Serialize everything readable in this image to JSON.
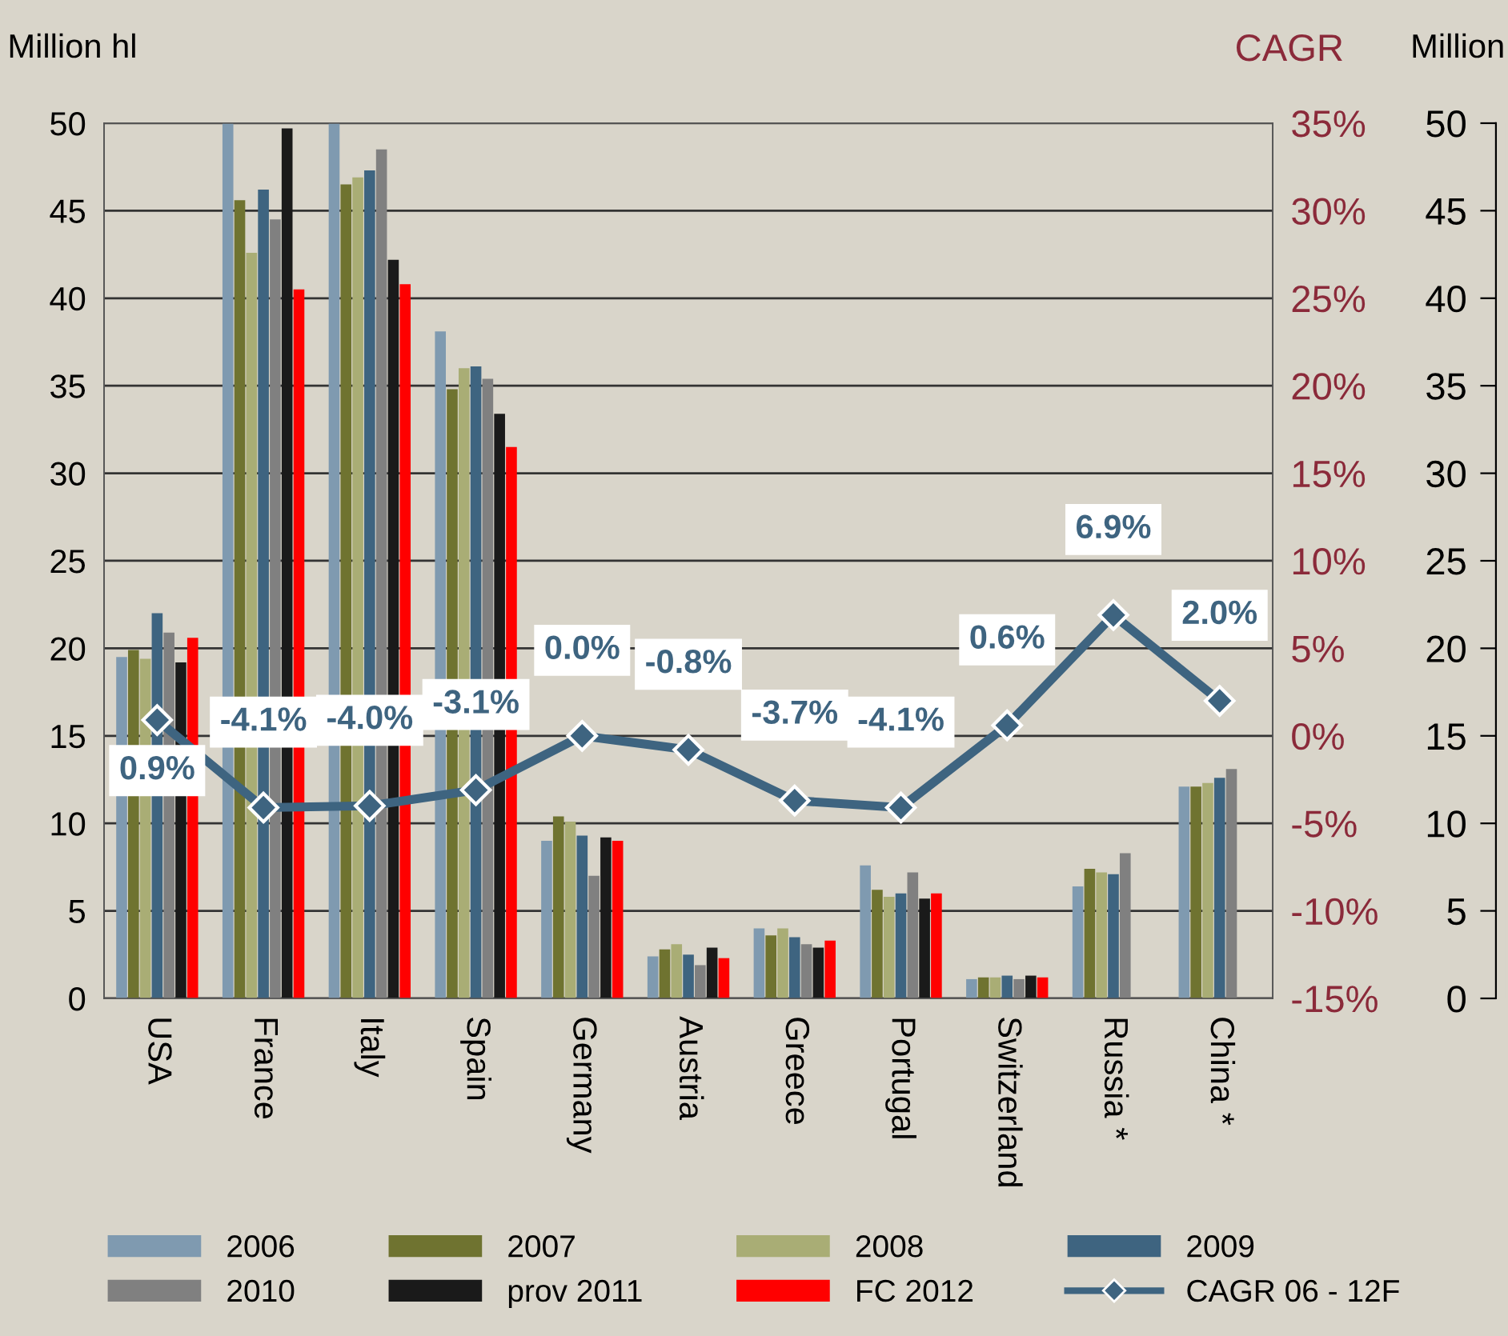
{
  "chart_data": {
    "type": "bar",
    "ylabel": "Million hl",
    "y2label": "CAGR",
    "y3label": "Million",
    "categories": [
      "USA",
      "France",
      "Italy",
      "Spain",
      "Germany",
      "Austria",
      "Greece",
      "Portugal",
      "Switzerland",
      "Russia *",
      "China *"
    ],
    "series": [
      {
        "name": "2006",
        "color": "#7f9ab0",
        "values": [
          19.5,
          50,
          50,
          38.1,
          9.0,
          2.4,
          4.0,
          7.6,
          1.1,
          6.4,
          12.1
        ]
      },
      {
        "name": "2007",
        "color": "#6f7330",
        "values": [
          19.9,
          45.6,
          46.5,
          34.8,
          10.4,
          2.8,
          3.6,
          6.2,
          1.2,
          7.4,
          12.1
        ]
      },
      {
        "name": "2008",
        "color": "#a9ad75",
        "values": [
          19.4,
          42.6,
          46.9,
          36.0,
          10.1,
          3.1,
          4.0,
          5.8,
          1.2,
          7.2,
          12.3
        ]
      },
      {
        "name": "2009",
        "color": "#3e6480",
        "values": [
          22.0,
          46.2,
          47.3,
          36.1,
          9.3,
          2.5,
          3.5,
          6.0,
          1.3,
          7.1,
          12.6
        ]
      },
      {
        "name": "2010",
        "color": "#808080",
        "values": [
          20.9,
          44.5,
          48.5,
          35.4,
          7.0,
          1.9,
          3.1,
          7.2,
          1.1,
          8.3,
          13.1
        ]
      },
      {
        "name": "prov 2011",
        "color": "#1a1a1a",
        "values": [
          19.2,
          49.7,
          42.2,
          33.4,
          9.2,
          2.9,
          2.9,
          5.7,
          1.3,
          null,
          null
        ]
      },
      {
        "name": "FC 2012",
        "color": "#ff0000",
        "values": [
          20.6,
          40.5,
          40.8,
          31.5,
          9.0,
          2.3,
          3.3,
          6.0,
          1.2,
          null,
          null
        ]
      },
      {
        "name": "CAGR 06 - 12F",
        "color": "#3e6480",
        "type": "line",
        "axis": "y2",
        "marker": "diamond",
        "values": [
          0.9,
          -4.1,
          -4.0,
          -3.1,
          0.0,
          -0.8,
          -3.7,
          -4.1,
          0.6,
          6.9,
          2.0
        ],
        "value_labels": [
          "0.9%",
          "-4.1%",
          "-4.0%",
          "-3.1%",
          "0.0%",
          "-0.8%",
          "-3.7%",
          "-4.1%",
          "0.6%",
          "6.9%",
          "2.0%"
        ]
      }
    ],
    "ylim": [
      0,
      50
    ],
    "yticks": [
      0,
      5,
      10,
      15,
      20,
      25,
      30,
      35,
      40,
      45,
      50
    ],
    "y2lim": [
      -15,
      35
    ],
    "y2ticks": [
      {
        "value": -15,
        "label": "-15%"
      },
      {
        "value": -10,
        "label": "-10%"
      },
      {
        "value": -5,
        "label": "-5%"
      },
      {
        "value": 0,
        "label": "0%"
      },
      {
        "value": 5,
        "label": "5%"
      },
      {
        "value": 10,
        "label": "10%"
      },
      {
        "value": 15,
        "label": "15%"
      },
      {
        "value": 20,
        "label": "20%"
      },
      {
        "value": 25,
        "label": "25%"
      },
      {
        "value": 30,
        "label": "30%"
      },
      {
        "value": 35,
        "label": "35%"
      }
    ],
    "y3lim": [
      0,
      50
    ],
    "y3ticks": [
      0,
      5,
      10,
      15,
      20,
      25,
      30,
      35,
      40,
      45,
      50
    ],
    "grid": "y",
    "legend": "bottom"
  }
}
